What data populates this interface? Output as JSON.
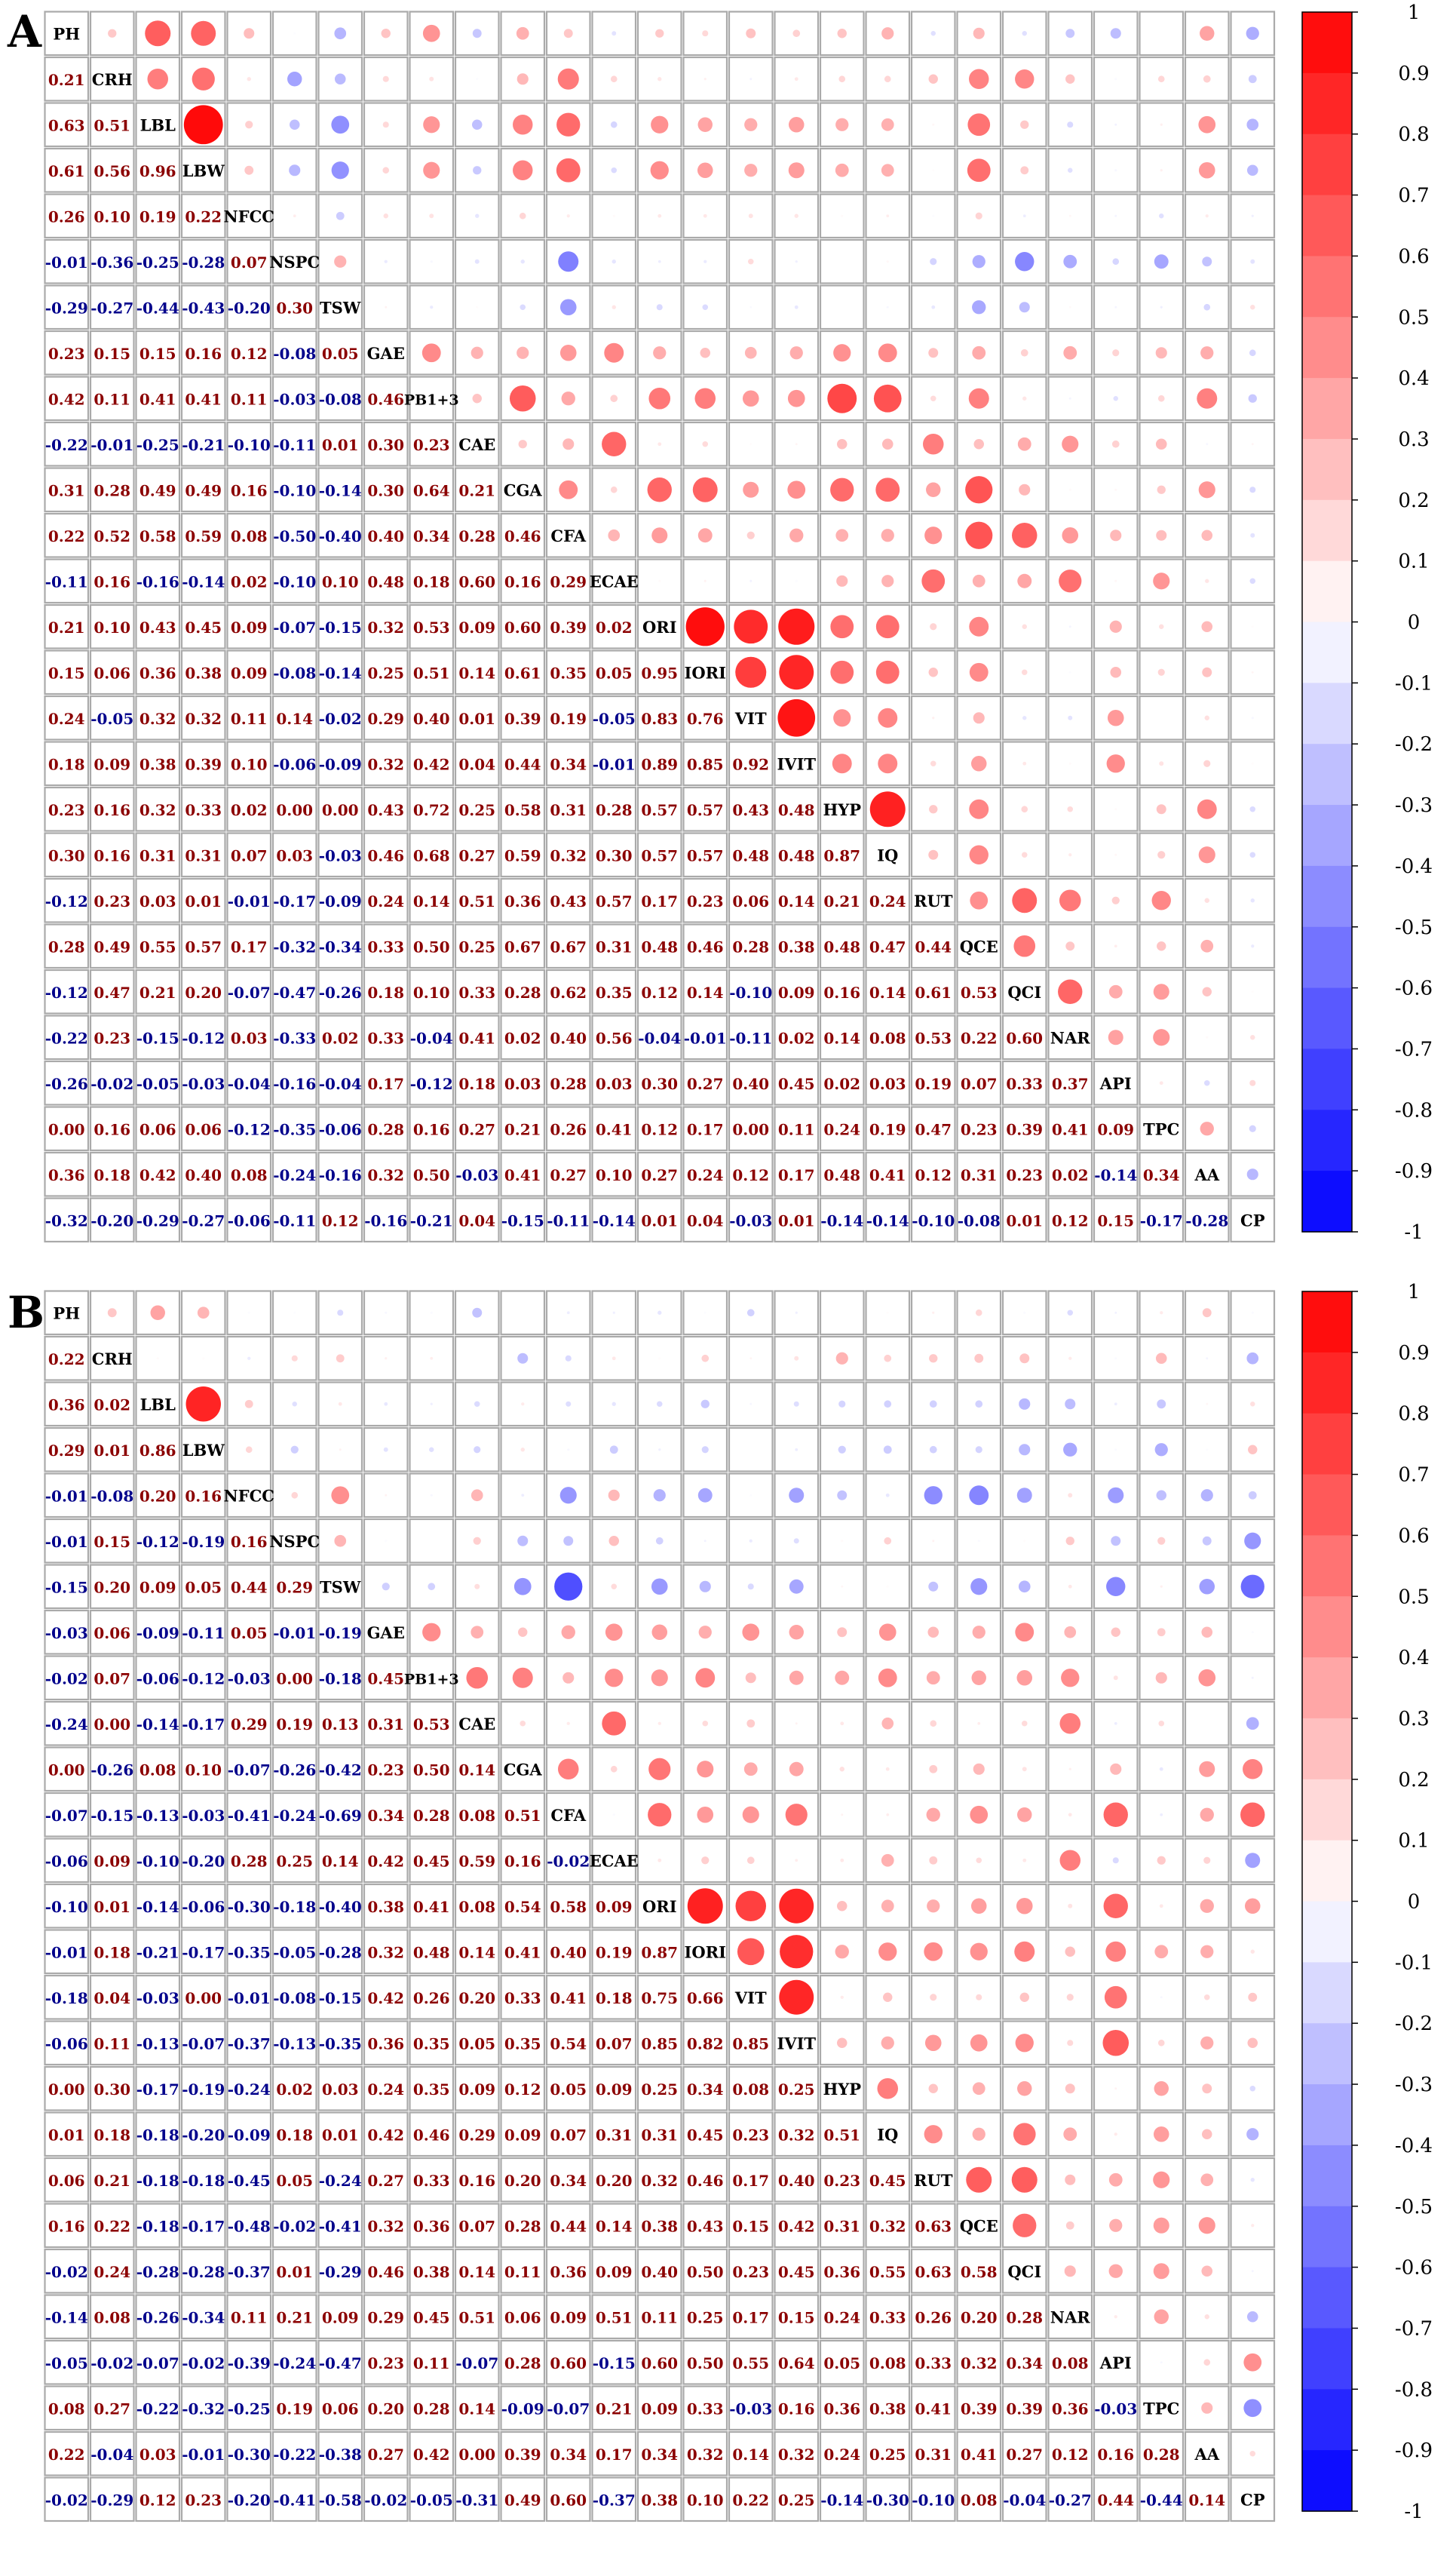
{
  "variables": [
    "PH",
    "CRH",
    "LBL",
    "LBW",
    "NFCC",
    "NSPC",
    "TSW",
    "GAE",
    "PB1+3",
    "CAE",
    "CGA",
    "CFA",
    "ECAE",
    "ORI",
    "IORI",
    "VIT",
    "IVIT",
    "HYP",
    "IQ",
    "RUT",
    "QCE",
    "QCI",
    "NAR",
    "API",
    "TPC",
    "AA",
    "CP"
  ],
  "colors": {
    "positive": "#ff0000",
    "negative": "#0000ff",
    "positive_text": "#8b0000",
    "negative_text": "#00008b",
    "grid": "#aaaaaa"
  },
  "chart_data": [
    {
      "type": "heatmap",
      "panel_label": "A",
      "colorbar_ticks": [
        "1",
        "0.9",
        "0.8",
        "0.7",
        "0.6",
        "0.5",
        "0.4",
        "0.3",
        "0.2",
        "0.1",
        "0",
        "-0.1",
        "-0.2",
        "-0.3",
        "-0.4",
        "-0.5",
        "-0.6",
        "-0.7",
        "-0.8",
        "-0.9",
        "-1"
      ],
      "lower": [
        [
          0.21
        ],
        [
          0.63,
          0.51
        ],
        [
          0.61,
          0.56,
          0.96
        ],
        [
          0.26,
          0.1,
          0.19,
          0.22
        ],
        [
          -0.01,
          -0.36,
          -0.25,
          -0.28,
          0.07
        ],
        [
          -0.29,
          -0.27,
          -0.44,
          -0.43,
          -0.2,
          0.3
        ],
        [
          0.23,
          0.15,
          0.15,
          0.16,
          0.12,
          -0.08,
          0.05
        ],
        [
          0.42,
          0.11,
          0.41,
          0.41,
          0.11,
          -0.03,
          -0.08,
          0.46
        ],
        [
          -0.22,
          -0.01,
          -0.25,
          -0.21,
          -0.1,
          -0.11,
          0.01,
          0.3,
          0.23
        ],
        [
          0.31,
          0.28,
          0.49,
          0.49,
          0.16,
          -0.1,
          -0.14,
          0.3,
          0.64,
          0.21
        ],
        [
          0.22,
          0.52,
          0.58,
          0.59,
          0.08,
          -0.5,
          -0.4,
          0.4,
          0.34,
          0.28,
          0.46
        ],
        [
          -0.11,
          0.16,
          -0.16,
          -0.14,
          0.02,
          -0.1,
          0.1,
          0.48,
          0.18,
          0.6,
          0.16,
          0.29
        ],
        [
          0.21,
          0.1,
          0.43,
          0.45,
          0.09,
          -0.07,
          -0.15,
          0.32,
          0.53,
          0.09,
          0.6,
          0.39,
          0.02
        ],
        [
          0.15,
          0.06,
          0.36,
          0.38,
          0.09,
          -0.08,
          -0.14,
          0.25,
          0.51,
          0.14,
          0.61,
          0.35,
          0.05,
          0.95
        ],
        [
          0.24,
          -0.05,
          0.32,
          0.32,
          0.11,
          0.14,
          -0.02,
          0.29,
          0.4,
          0.01,
          0.39,
          0.19,
          -0.05,
          0.83,
          0.76
        ],
        [
          0.18,
          0.09,
          0.38,
          0.39,
          0.1,
          -0.06,
          -0.09,
          0.32,
          0.42,
          0.04,
          0.44,
          0.34,
          -0.01,
          0.89,
          0.85,
          0.92
        ],
        [
          0.23,
          0.16,
          0.32,
          0.33,
          0.02,
          0.0,
          0.0,
          0.43,
          0.72,
          0.25,
          0.58,
          0.31,
          0.28,
          0.57,
          0.57,
          0.43,
          0.48
        ],
        [
          0.3,
          0.16,
          0.31,
          0.31,
          0.07,
          0.03,
          -0.03,
          0.46,
          0.68,
          0.27,
          0.59,
          0.32,
          0.3,
          0.57,
          0.57,
          0.48,
          0.48,
          0.87
        ],
        [
          -0.12,
          0.23,
          0.03,
          0.01,
          -0.01,
          -0.17,
          -0.09,
          0.24,
          0.14,
          0.51,
          0.36,
          0.43,
          0.57,
          0.17,
          0.23,
          0.06,
          0.14,
          0.21,
          0.24
        ],
        [
          0.28,
          0.49,
          0.55,
          0.57,
          0.17,
          -0.32,
          -0.34,
          0.33,
          0.5,
          0.25,
          0.67,
          0.67,
          0.31,
          0.48,
          0.46,
          0.28,
          0.38,
          0.48,
          0.47,
          0.44
        ],
        [
          -0.12,
          0.47,
          0.21,
          0.2,
          -0.07,
          -0.47,
          -0.26,
          0.18,
          0.1,
          0.33,
          0.28,
          0.62,
          0.35,
          0.12,
          0.14,
          -0.1,
          0.09,
          0.16,
          0.14,
          0.61,
          0.53
        ],
        [
          -0.22,
          0.23,
          -0.15,
          -0.12,
          0.03,
          -0.33,
          0.02,
          0.33,
          -0.04,
          0.41,
          0.02,
          0.4,
          0.56,
          -0.04,
          -0.01,
          -0.11,
          0.02,
          0.14,
          0.08,
          0.53,
          0.22,
          0.6
        ],
        [
          -0.26,
          -0.02,
          -0.05,
          -0.03,
          -0.04,
          -0.16,
          -0.04,
          0.17,
          -0.12,
          0.18,
          0.03,
          0.28,
          0.03,
          0.3,
          0.27,
          0.4,
          0.45,
          0.02,
          0.03,
          0.19,
          0.07,
          0.33,
          0.37
        ],
        [
          0.0,
          0.16,
          0.06,
          0.06,
          -0.12,
          -0.35,
          -0.06,
          0.28,
          0.16,
          0.27,
          0.21,
          0.26,
          0.41,
          0.12,
          0.17,
          0.0,
          0.11,
          0.24,
          0.19,
          0.47,
          0.23,
          0.39,
          0.41,
          0.09
        ],
        [
          0.36,
          0.18,
          0.42,
          0.4,
          0.08,
          -0.24,
          -0.16,
          0.32,
          0.5,
          -0.03,
          0.41,
          0.27,
          0.1,
          0.27,
          0.24,
          0.12,
          0.17,
          0.48,
          0.41,
          0.12,
          0.31,
          0.23,
          0.02,
          -0.14,
          0.34
        ],
        [
          -0.32,
          -0.2,
          -0.29,
          -0.27,
          -0.06,
          -0.11,
          0.12,
          -0.16,
          -0.21,
          0.04,
          -0.15,
          -0.11,
          -0.14,
          0.01,
          0.04,
          -0.03,
          0.01,
          -0.14,
          -0.14,
          -0.1,
          -0.08,
          0.01,
          0.12,
          0.15,
          -0.17,
          -0.28
        ]
      ]
    },
    {
      "type": "heatmap",
      "panel_label": "B",
      "colorbar_ticks": [
        "1",
        "0.9",
        "0.8",
        "0.7",
        "0.6",
        "0.5",
        "0.4",
        "0.3",
        "0.2",
        "0.1",
        "0",
        "-0.1",
        "-0.2",
        "-0.3",
        "-0.4",
        "-0.5",
        "-0.6",
        "-0.7",
        "-0.8",
        "-0.9",
        "-1"
      ],
      "lower": [
        [
          0.22
        ],
        [
          0.36,
          0.02
        ],
        [
          0.29,
          0.01,
          0.86
        ],
        [
          -0.01,
          -0.08,
          0.2,
          0.16
        ],
        [
          -0.01,
          0.15,
          -0.12,
          -0.19,
          0.16
        ],
        [
          -0.15,
          0.2,
          0.09,
          0.05,
          0.44,
          0.29
        ],
        [
          -0.03,
          0.06,
          -0.09,
          -0.11,
          0.05,
          -0.01,
          -0.19
        ],
        [
          -0.02,
          0.07,
          -0.06,
          -0.12,
          -0.03,
          0.0,
          -0.18,
          0.45
        ],
        [
          -0.24,
          0.0,
          -0.14,
          -0.17,
          0.29,
          0.19,
          0.13,
          0.31,
          0.53
        ],
        [
          0.0,
          -0.26,
          0.08,
          0.1,
          -0.07,
          -0.26,
          -0.42,
          0.23,
          0.5,
          0.14
        ],
        [
          -0.07,
          -0.15,
          -0.13,
          -0.03,
          -0.41,
          -0.24,
          -0.69,
          0.34,
          0.28,
          0.08,
          0.51
        ],
        [
          -0.06,
          0.09,
          -0.1,
          -0.2,
          0.28,
          0.25,
          0.14,
          0.42,
          0.45,
          0.59,
          0.16,
          -0.02
        ],
        [
          -0.1,
          0.01,
          -0.14,
          -0.06,
          -0.3,
          -0.18,
          -0.4,
          0.38,
          0.41,
          0.08,
          0.54,
          0.58,
          0.09
        ],
        [
          -0.01,
          0.18,
          -0.21,
          -0.17,
          -0.35,
          -0.05,
          -0.28,
          0.32,
          0.48,
          0.14,
          0.41,
          0.4,
          0.19,
          0.87
        ],
        [
          -0.18,
          0.04,
          -0.03,
          0.0,
          -0.01,
          -0.08,
          -0.15,
          0.42,
          0.26,
          0.2,
          0.33,
          0.41,
          0.18,
          0.75,
          0.66
        ],
        [
          -0.06,
          0.11,
          -0.13,
          -0.07,
          -0.37,
          -0.13,
          -0.35,
          0.36,
          0.35,
          0.05,
          0.35,
          0.54,
          0.07,
          0.85,
          0.82,
          0.85
        ],
        [
          0.0,
          0.3,
          -0.17,
          -0.19,
          -0.24,
          0.02,
          0.03,
          0.24,
          0.35,
          0.09,
          0.12,
          0.05,
          0.09,
          0.25,
          0.34,
          0.08,
          0.25
        ],
        [
          0.01,
          0.18,
          -0.18,
          -0.2,
          -0.09,
          0.18,
          0.01,
          0.42,
          0.46,
          0.29,
          0.09,
          0.07,
          0.31,
          0.31,
          0.45,
          0.23,
          0.32,
          0.51
        ],
        [
          0.06,
          0.21,
          -0.18,
          -0.18,
          -0.45,
          0.05,
          -0.24,
          0.27,
          0.33,
          0.16,
          0.2,
          0.34,
          0.2,
          0.32,
          0.46,
          0.17,
          0.4,
          0.23,
          0.45
        ],
        [
          0.16,
          0.22,
          -0.18,
          -0.17,
          -0.48,
          -0.02,
          -0.41,
          0.32,
          0.36,
          0.07,
          0.28,
          0.44,
          0.14,
          0.38,
          0.43,
          0.15,
          0.42,
          0.31,
          0.32,
          0.63
        ],
        [
          -0.02,
          0.24,
          -0.28,
          -0.28,
          -0.37,
          0.01,
          -0.29,
          0.46,
          0.38,
          0.14,
          0.11,
          0.36,
          0.09,
          0.4,
          0.5,
          0.23,
          0.45,
          0.36,
          0.55,
          0.63,
          0.58
        ],
        [
          -0.14,
          0.08,
          -0.26,
          -0.34,
          0.11,
          0.21,
          0.09,
          0.29,
          0.45,
          0.51,
          0.06,
          0.09,
          0.51,
          0.11,
          0.25,
          0.17,
          0.15,
          0.24,
          0.33,
          0.26,
          0.2,
          0.28
        ],
        [
          -0.05,
          -0.02,
          -0.07,
          -0.02,
          -0.39,
          -0.24,
          -0.47,
          0.23,
          0.11,
          -0.07,
          0.28,
          0.6,
          -0.15,
          0.6,
          0.5,
          0.55,
          0.64,
          0.05,
          0.08,
          0.33,
          0.32,
          0.34,
          0.08
        ],
        [
          0.08,
          0.27,
          -0.22,
          -0.32,
          -0.25,
          0.19,
          0.06,
          0.2,
          0.28,
          0.14,
          -0.09,
          -0.07,
          0.21,
          0.09,
          0.33,
          -0.03,
          0.16,
          0.36,
          0.38,
          0.41,
          0.39,
          0.39,
          0.36,
          -0.03
        ],
        [
          0.22,
          -0.04,
          0.03,
          -0.01,
          -0.3,
          -0.22,
          -0.38,
          0.27,
          0.42,
          0.0,
          0.39,
          0.34,
          0.17,
          0.34,
          0.32,
          0.14,
          0.32,
          0.24,
          0.25,
          0.31,
          0.41,
          0.27,
          0.12,
          0.16,
          0.28
        ],
        [
          -0.02,
          -0.29,
          0.12,
          0.23,
          -0.2,
          -0.41,
          -0.58,
          -0.02,
          -0.05,
          -0.31,
          0.49,
          0.6,
          -0.37,
          0.38,
          0.1,
          0.22,
          0.25,
          -0.14,
          -0.3,
          -0.1,
          0.08,
          -0.04,
          -0.27,
          0.44,
          -0.44,
          0.14
        ]
      ]
    }
  ]
}
